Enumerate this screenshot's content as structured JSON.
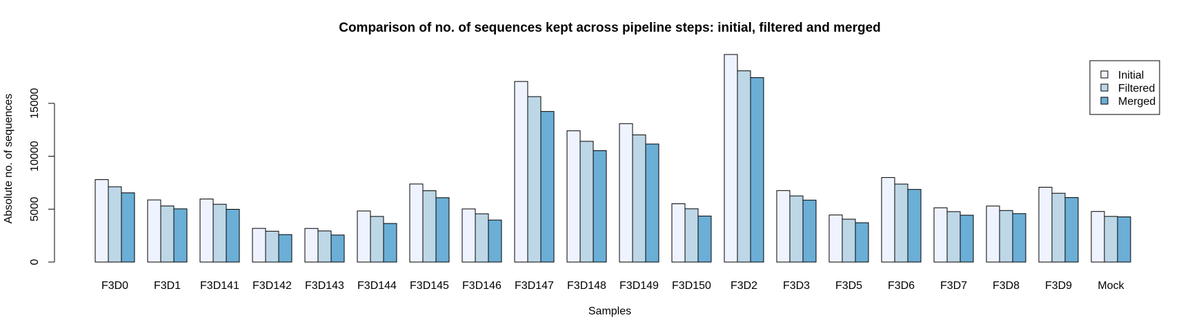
{
  "chart_data": {
    "type": "bar",
    "title": "Comparison of no. of sequences kept across pipeline steps: initial, filtered and merged",
    "xlabel": "Samples",
    "ylabel": "Absolute no. of sequences",
    "categories": [
      "F3D0",
      "F3D1",
      "F3D141",
      "F3D142",
      "F3D143",
      "F3D144",
      "F3D145",
      "F3D146",
      "F3D147",
      "F3D148",
      "F3D149",
      "F3D150",
      "F3D2",
      "F3D3",
      "F3D5",
      "F3D6",
      "F3D7",
      "F3D8",
      "F3D9",
      "Mock"
    ],
    "series": [
      {
        "name": "Initial",
        "color": "#eff3ff",
        "values": [
          7793,
          5869,
          5958,
          3183,
          3178,
          4827,
          7377,
          5021,
          17070,
          12405,
          13083,
          5509,
          19620,
          6758,
          4448,
          7989,
          5129,
          5294,
          7070,
          4779
        ]
      },
      {
        "name": "Filtered",
        "color": "#bdd7e7",
        "values": [
          7113,
          5299,
          5463,
          2914,
          2941,
          4312,
          6741,
          4560,
          15637,
          11413,
          12017,
          5032,
          18075,
          6250,
          4052,
          7369,
          4765,
          4871,
          6504,
          4314
        ]
      },
      {
        "name": "Merged",
        "color": "#6baed6",
        "values": [
          6540,
          5028,
          4986,
          2595,
          2553,
          3646,
          6079,
          3968,
          14233,
          10528,
          11154,
          4349,
          17431,
          5853,
          3716,
          6865,
          4428,
          4576,
          6092,
          4269
        ]
      }
    ],
    "yticks": [
      0,
      5000,
      10000,
      15000
    ],
    "ylim": [
      0,
      19620
    ],
    "legend": {
      "position": "top-right",
      "entries": [
        "Initial",
        "Filtered",
        "Merged"
      ]
    },
    "grid": false
  }
}
